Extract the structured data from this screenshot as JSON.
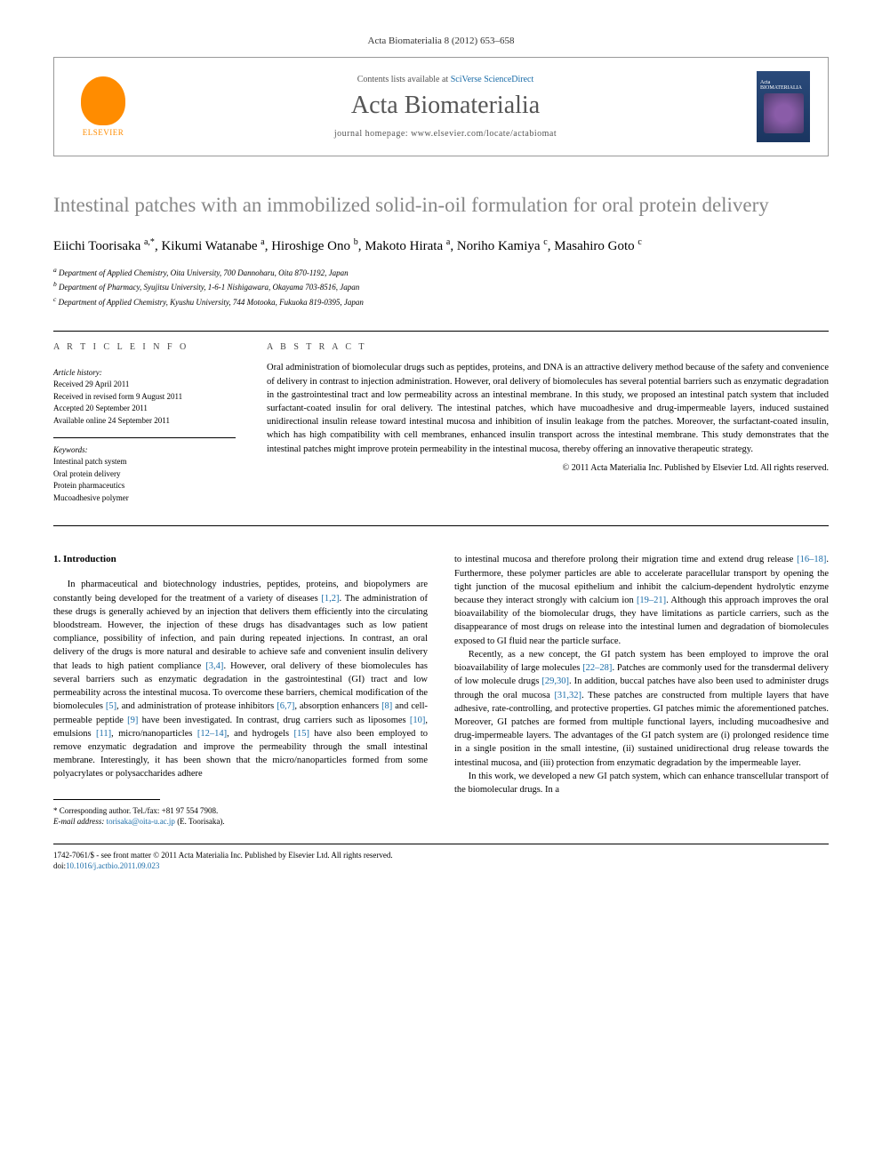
{
  "journal_ref": "Acta Biomaterialia 8 (2012) 653–658",
  "header": {
    "contents_prefix": "Contents lists available at ",
    "contents_link": "SciVerse ScienceDirect",
    "journal_name": "Acta Biomaterialia",
    "homepage_prefix": "journal homepage: ",
    "homepage_url": "www.elsevier.com/locate/actabiomat",
    "elsevier_label": "ELSEVIER",
    "cover_label": "Acta BIOMATERIALIA"
  },
  "title": "Intestinal patches with an immobilized solid-in-oil formulation for oral protein delivery",
  "authors_html": "Eiichi Toorisaka <sup>a,*</sup>, Kikumi Watanabe <sup>a</sup>, Hiroshige Ono <sup>b</sup>, Makoto Hirata <sup>a</sup>, Noriho Kamiya <sup>c</sup>, Masahiro Goto <sup>c</sup>",
  "affiliations": [
    "a Department of Applied Chemistry, Oita University, 700 Dannoharu, Oita 870-1192, Japan",
    "b Department of Pharmacy, Syujitsu University, 1-6-1 Nishigawara, Okayama 703-8516, Japan",
    "c Department of Applied Chemistry, Kyushu University, 744 Motooka, Fukuoka 819-0395, Japan"
  ],
  "article_info": {
    "heading": "A R T I C L E   I N F O",
    "history_label": "Article history:",
    "history": [
      "Received 29 April 2011",
      "Received in revised form 9 August 2011",
      "Accepted 20 September 2011",
      "Available online 24 September 2011"
    ],
    "keywords_label": "Keywords:",
    "keywords": [
      "Intestinal patch system",
      "Oral protein delivery",
      "Protein pharmaceutics",
      "Mucoadhesive polymer"
    ]
  },
  "abstract": {
    "heading": "A B S T R A C T",
    "text": "Oral administration of biomolecular drugs such as peptides, proteins, and DNA is an attractive delivery method because of the safety and convenience of delivery in contrast to injection administration. However, oral delivery of biomolecules has several potential barriers such as enzymatic degradation in the gastrointestinal tract and low permeability across an intestinal membrane. In this study, we proposed an intestinal patch system that included surfactant-coated insulin for oral delivery. The intestinal patches, which have mucoadhesive and drug-impermeable layers, induced sustained unidirectional insulin release toward intestinal mucosa and inhibition of insulin leakage from the patches. Moreover, the surfactant-coated insulin, which has high compatibility with cell membranes, enhanced insulin transport across the intestinal membrane. This study demonstrates that the intestinal patches might improve protein permeability in the intestinal mucosa, thereby offering an innovative therapeutic strategy.",
    "copyright": "© 2011 Acta Materialia Inc. Published by Elsevier Ltd. All rights reserved."
  },
  "body": {
    "section_heading": "1. Introduction",
    "col1_p1": "In pharmaceutical and biotechnology industries, peptides, proteins, and biopolymers are constantly being developed for the treatment of a variety of diseases [1,2]. The administration of these drugs is generally achieved by an injection that delivers them efficiently into the circulating bloodstream. However, the injection of these drugs has disadvantages such as low patient compliance, possibility of infection, and pain during repeated injections. In contrast, an oral delivery of the drugs is more natural and desirable to achieve safe and convenient insulin delivery that leads to high patient compliance [3,4]. However, oral delivery of these biomolecules has several barriers such as enzymatic degradation in the gastrointestinal (GI) tract and low permeability across the intestinal mucosa. To overcome these barriers, chemical modification of the biomolecules [5], and administration of protease inhibitors [6,7], absorption enhancers [8] and cell-permeable peptide [9] have been investigated. In contrast, drug carriers such as liposomes [10], emulsions [11], micro/nanoparticles [12–14], and hydrogels [15] have also been employed to remove enzymatic degradation and improve the permeability through the small intestinal membrane. Interestingly, it has been shown that the micro/nanoparticles formed from some polyacrylates or polysaccharides adhere",
    "col2_p1": "to intestinal mucosa and therefore prolong their migration time and extend drug release [16–18]. Furthermore, these polymer particles are able to accelerate paracellular transport by opening the tight junction of the mucosal epithelium and inhibit the calcium-dependent hydrolytic enzyme because they interact strongly with calcium ion [19–21]. Although this approach improves the oral bioavailability of the biomolecular drugs, they have limitations as particle carriers, such as the disappearance of most drugs on release into the intestinal lumen and degradation of biomolecules exposed to GI fluid near the particle surface.",
    "col2_p2": "Recently, as a new concept, the GI patch system has been employed to improve the oral bioavailability of large molecules [22–28]. Patches are commonly used for the transdermal delivery of low molecule drugs [29,30]. In addition, buccal patches have also been used to administer drugs through the oral mucosa [31,32]. These patches are constructed from multiple layers that have adhesive, rate-controlling, and protective properties. GI patches mimic the aforementioned patches. Moreover, GI patches are formed from multiple functional layers, including mucoadhesive and drug-impermeable layers. The advantages of the GI patch system are (i) prolonged residence time in a single position in the small intestine, (ii) sustained unidirectional drug release towards the intestinal mucosa, and (iii) protection from enzymatic degradation by the impermeable layer.",
    "col2_p3": "In this work, we developed a new GI patch system, which can enhance transcellular transport of the biomolecular drugs. In a"
  },
  "corresponding": {
    "label": "* Corresponding author. Tel./fax: +81 97 554 7908.",
    "email_label": "E-mail address: ",
    "email": "torisaka@oita-u.ac.jp",
    "email_suffix": " (E. Toorisaka)."
  },
  "bottom": {
    "line1": "1742-7061/$ - see front matter © 2011 Acta Materialia Inc. Published by Elsevier Ltd. All rights reserved.",
    "doi_prefix": "doi:",
    "doi": "10.1016/j.actbio.2011.09.023"
  },
  "colors": {
    "link": "#1a6ca8",
    "title_gray": "#878787",
    "elsevier_orange": "#ff8c00"
  }
}
